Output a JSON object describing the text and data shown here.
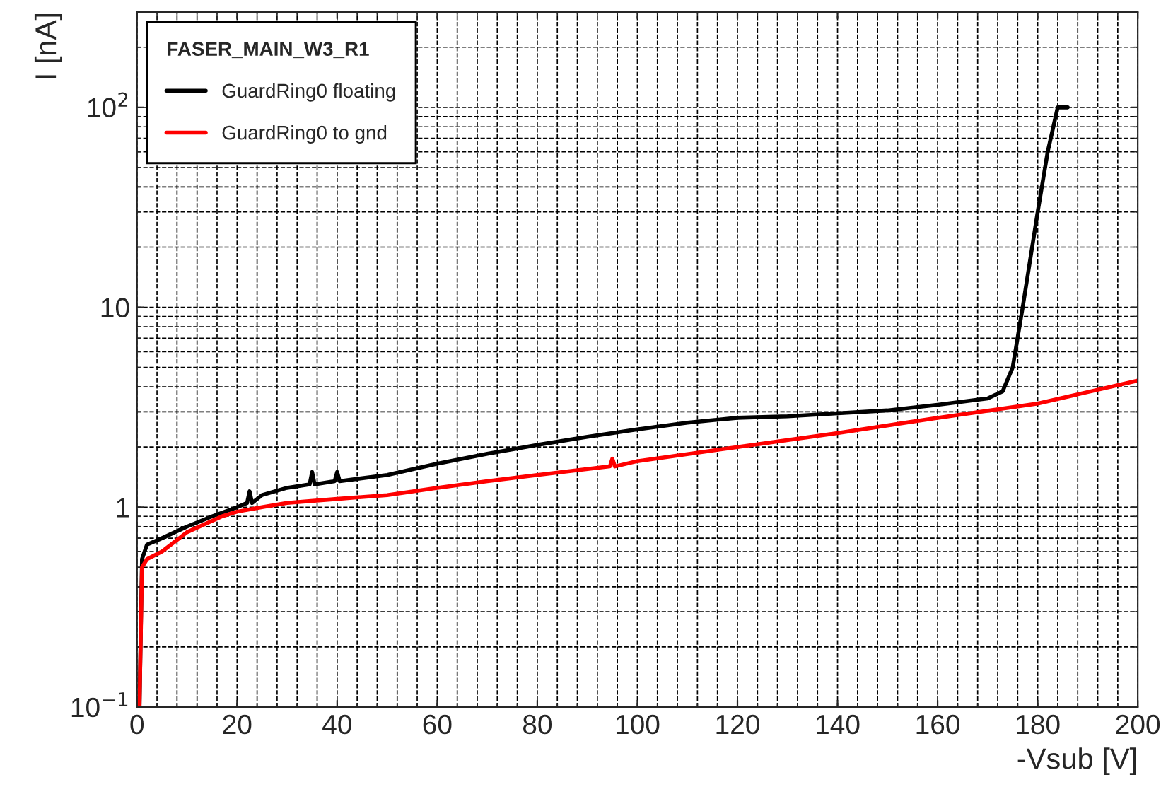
{
  "chart_data": {
    "type": "line",
    "xlabel": "-Vsub [V]",
    "ylabel": "I [nA]",
    "legend_title": "FASER_MAIN_W3_R1",
    "legend": "top left",
    "log": "y",
    "grid": true,
    "line_style": "solid",
    "marker": "none",
    "xlim": [
      0,
      200
    ],
    "xticks": [
      0,
      20,
      40,
      60,
      80,
      100,
      120,
      140,
      160,
      180,
      200
    ],
    "ylim": [
      0.1,
      300
    ],
    "yticks": [
      {
        "value": 0.1,
        "label": "10$^{−1}$"
      },
      {
        "value": 1,
        "label": "1"
      },
      {
        "value": 10,
        "label": "10"
      },
      {
        "value": 100,
        "label": "10$^{2}$"
      }
    ],
    "series": [
      {
        "name": "GuardRing0 floating",
        "color": "#000000",
        "x": [
          0.5,
          1,
          2,
          5,
          10,
          15,
          20,
          22,
          22.5,
          23,
          25,
          30,
          34.5,
          35,
          35.5,
          39.5,
          40,
          40.5,
          50,
          60,
          70,
          80,
          90,
          100,
          110,
          120,
          130,
          140,
          150,
          160,
          170,
          173,
          175,
          177,
          180,
          182,
          184,
          186
        ],
        "values": [
          0.1,
          0.55,
          0.65,
          0.7,
          0.8,
          0.9,
          1.0,
          1.05,
          1.2,
          1.05,
          1.15,
          1.25,
          1.3,
          1.5,
          1.3,
          1.35,
          1.5,
          1.35,
          1.45,
          1.65,
          1.85,
          2.05,
          2.25,
          2.45,
          2.65,
          2.8,
          2.85,
          2.95,
          3.05,
          3.25,
          3.5,
          3.8,
          5,
          10,
          30,
          60,
          100,
          100
        ]
      },
      {
        "name": "GuardRing0 to gnd",
        "color": "#ff0000",
        "x": [
          0.5,
          1,
          2,
          5,
          10,
          17,
          20,
          25,
          30,
          40,
          50,
          60,
          70,
          80,
          94.5,
          95,
          95.5,
          100,
          120,
          140,
          160,
          180,
          200
        ],
        "values": [
          0.1,
          0.5,
          0.55,
          0.6,
          0.75,
          0.9,
          0.95,
          1.0,
          1.05,
          1.1,
          1.15,
          1.25,
          1.35,
          1.45,
          1.6,
          1.75,
          1.6,
          1.7,
          2.0,
          2.35,
          2.8,
          3.3,
          4.3
        ]
      }
    ]
  }
}
